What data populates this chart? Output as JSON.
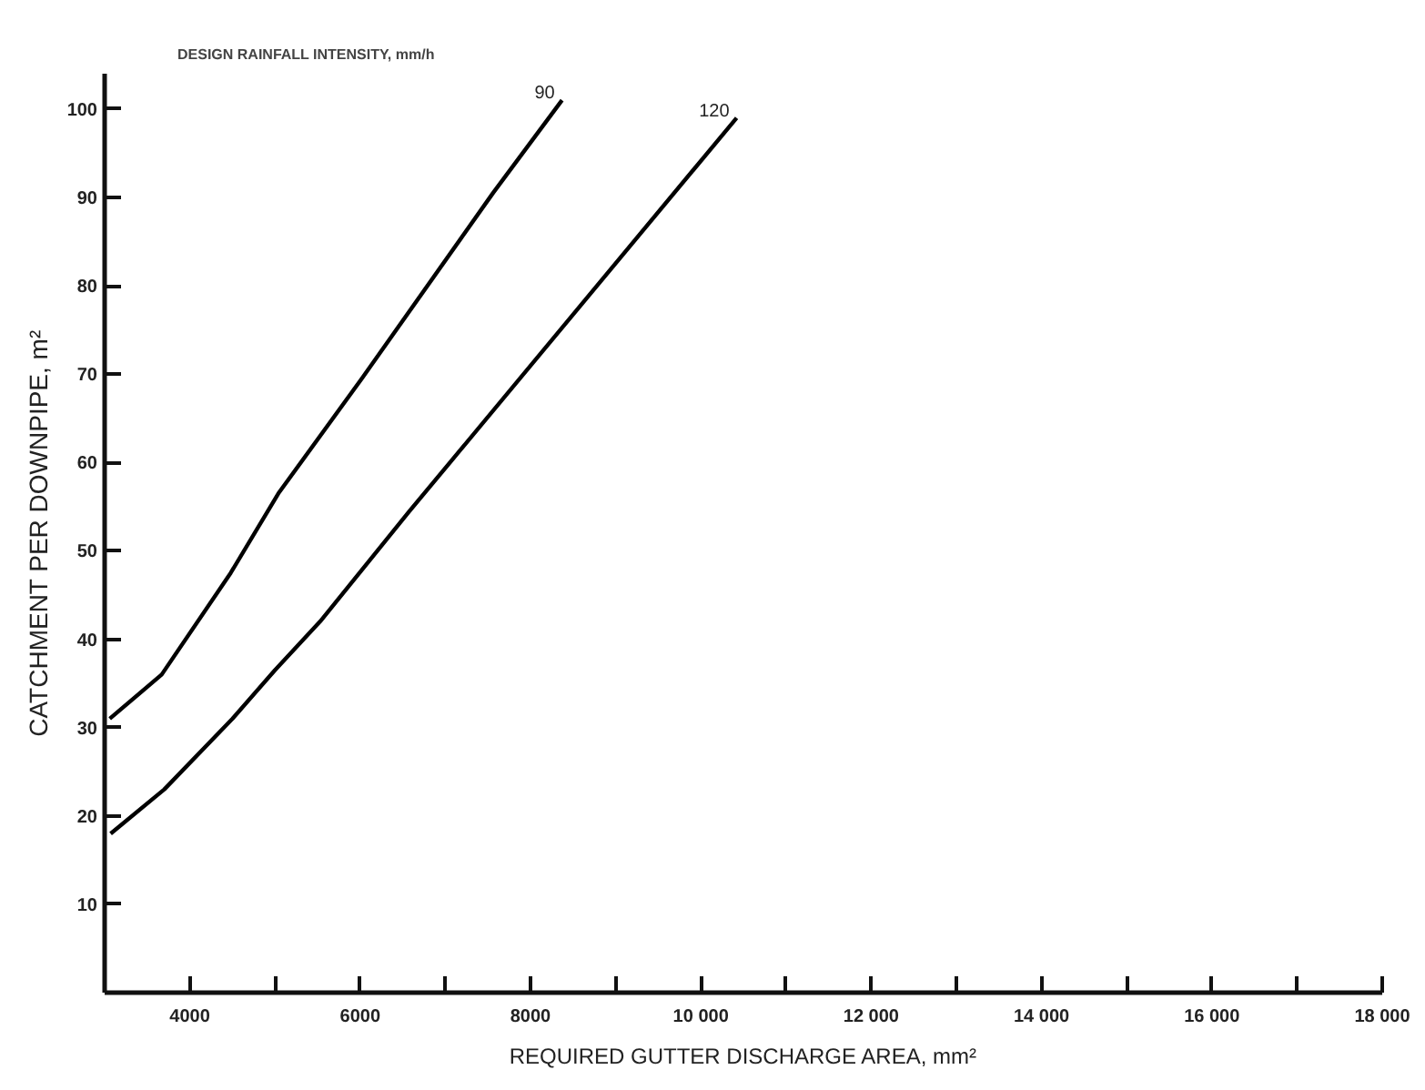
{
  "chart_data": {
    "type": "line",
    "title": "DESIGN RAINFALL INTENSITY, mm/h",
    "xlabel": "REQUIRED GUTTER DISCHARGE AREA, mm²",
    "ylabel": "CATCHMENT PER DOWNPIPE, m²",
    "xlim": [
      3000,
      18000
    ],
    "ylim": [
      0,
      104
    ],
    "xticks": [
      4000,
      {
        "value": 5000,
        "label": null
      },
      6000,
      {
        "value": 7000,
        "label": null
      },
      8000,
      {
        "value": 9000,
        "label": null
      },
      {
        "value": 10000,
        "label": "10 000"
      },
      {
        "value": 11000,
        "label": null
      },
      {
        "value": 12000,
        "label": "12 000"
      },
      {
        "value": 13000,
        "label": null
      },
      {
        "value": 14000,
        "label": "14 000"
      },
      {
        "value": 15000,
        "label": null
      },
      {
        "value": 16000,
        "label": "16 000"
      },
      {
        "value": 17000,
        "label": null
      },
      {
        "value": 18000,
        "label": "18 000"
      }
    ],
    "yticks": [
      10,
      20,
      30,
      40,
      50,
      60,
      70,
      80,
      90,
      100
    ],
    "grid": false,
    "legend": false,
    "line_style": "solid",
    "series": [
      {
        "name": "90",
        "color": "#000000",
        "x": [
          3060,
          3670,
          4480,
          5040,
          6020,
          7560,
          8370
        ],
        "values": [
          31,
          36,
          47.5,
          56.5,
          69.5,
          90.5,
          101
        ]
      },
      {
        "name": "120",
        "color": "#000000",
        "x": [
          3070,
          3700,
          4500,
          5000,
          5530,
          6580,
          10420
        ],
        "values": [
          18,
          23,
          31,
          36.5,
          42,
          54.5,
          99
        ]
      }
    ]
  }
}
